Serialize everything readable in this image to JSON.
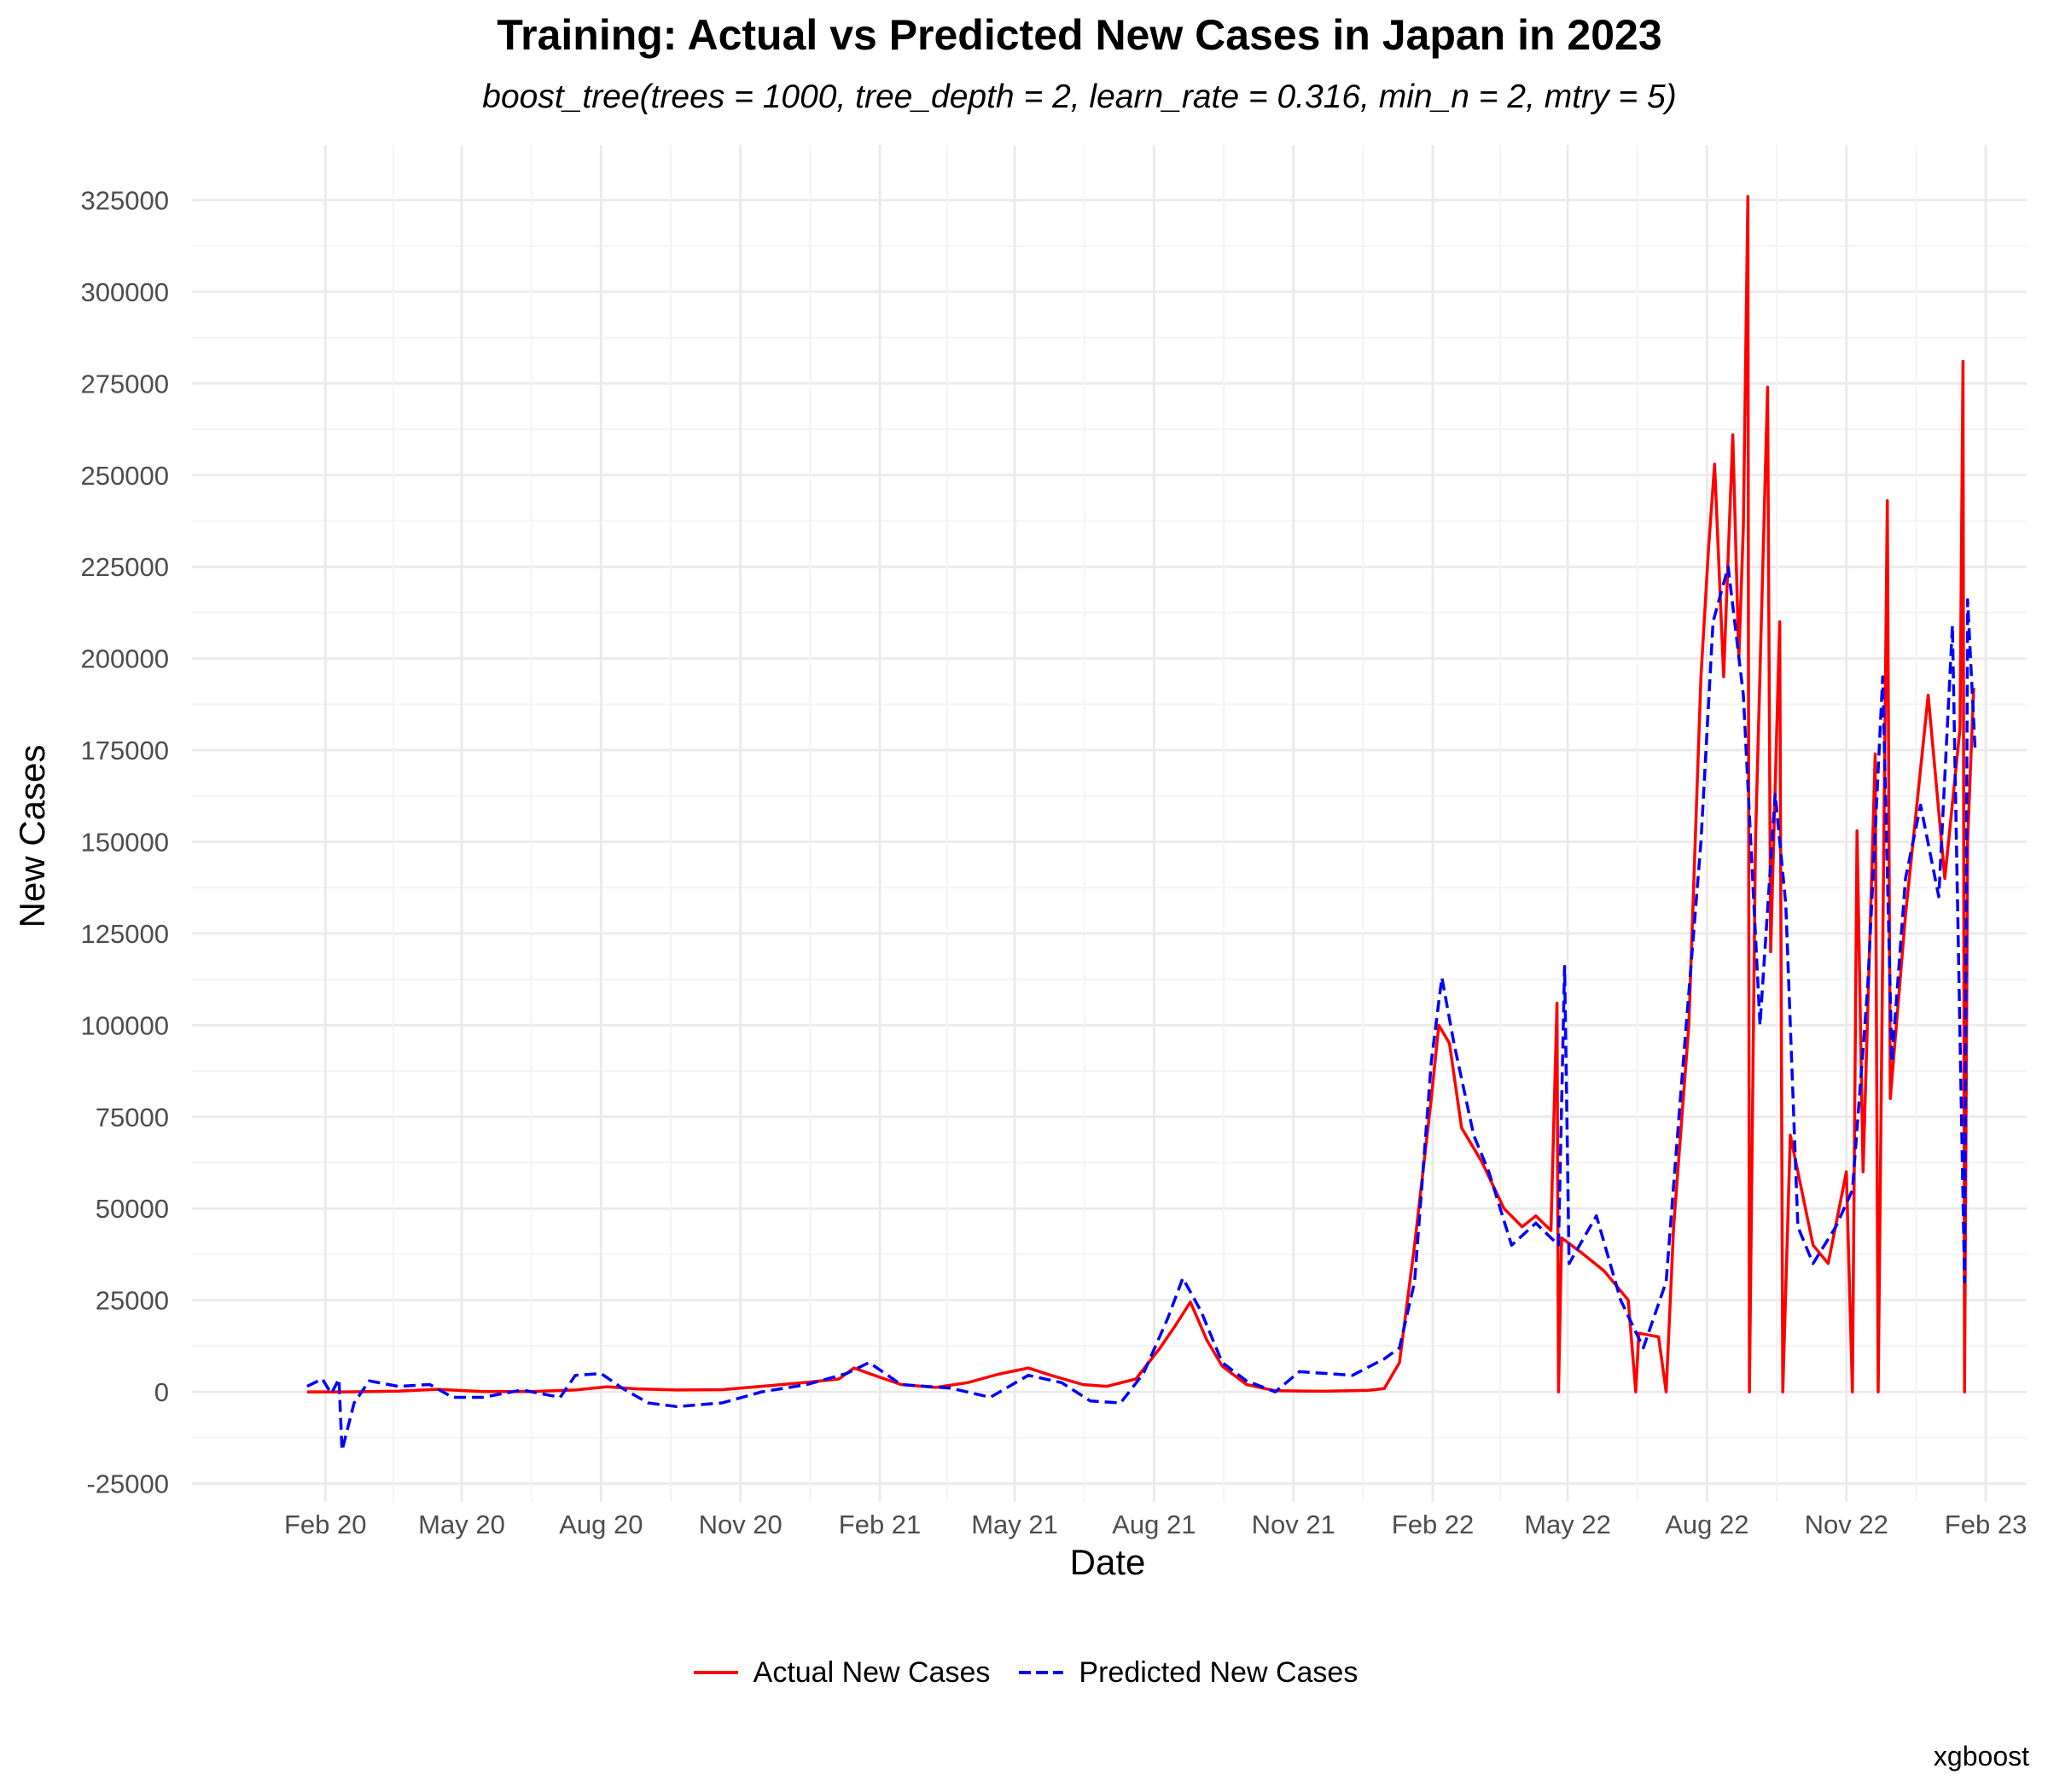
{
  "chart_data": {
    "type": "line",
    "title": "Training: Actual vs Predicted New Cases in Japan in 2023",
    "subtitle": "boost_tree(trees = 1000, tree_depth = 2, learn_rate = 0.316, min_n = 2, mtry = 5)",
    "xlabel": "Date",
    "ylabel": "New Cases",
    "caption": "xgboost",
    "ylim": [
      -30000,
      340000
    ],
    "y_ticks": [
      -25000,
      0,
      25000,
      50000,
      75000,
      100000,
      125000,
      150000,
      175000,
      200000,
      225000,
      250000,
      275000,
      300000,
      325000
    ],
    "x_range": [
      "2019-11-05",
      "2023-02-28"
    ],
    "x_ticks": [
      {
        "date": "2020-02-01",
        "label": "Feb 20"
      },
      {
        "date": "2020-05-01",
        "label": "May 20"
      },
      {
        "date": "2020-08-01",
        "label": "Aug 20"
      },
      {
        "date": "2020-11-01",
        "label": "Nov 20"
      },
      {
        "date": "2021-02-01",
        "label": "Feb 21"
      },
      {
        "date": "2021-05-01",
        "label": "May 21"
      },
      {
        "date": "2021-08-01",
        "label": "Aug 21"
      },
      {
        "date": "2021-11-01",
        "label": "Nov 21"
      },
      {
        "date": "2022-02-01",
        "label": "Feb 22"
      },
      {
        "date": "2022-05-01",
        "label": "May 22"
      },
      {
        "date": "2022-08-01",
        "label": "Aug 22"
      },
      {
        "date": "2022-11-01",
        "label": "Nov 22"
      },
      {
        "date": "2023-02-01",
        "label": "Feb 23"
      }
    ],
    "grid": true,
    "legend_position": "bottom",
    "series": [
      {
        "name": "Actual New Cases",
        "color": "#ff0000",
        "dash": "solid",
        "points": [
          [
            "2020-01-20",
            0
          ],
          [
            "2020-02-15",
            0
          ],
          [
            "2020-03-20",
            200
          ],
          [
            "2020-04-15",
            700
          ],
          [
            "2020-05-15",
            100
          ],
          [
            "2020-06-15",
            100
          ],
          [
            "2020-07-15",
            500
          ],
          [
            "2020-08-05",
            1400
          ],
          [
            "2020-08-25",
            800
          ],
          [
            "2020-09-20",
            500
          ],
          [
            "2020-10-20",
            600
          ],
          [
            "2020-11-15",
            1500
          ],
          [
            "2020-12-15",
            2600
          ],
          [
            "2021-01-05",
            3500
          ],
          [
            "2021-01-15",
            6500
          ],
          [
            "2021-01-25",
            5000
          ],
          [
            "2021-02-15",
            2000
          ],
          [
            "2021-03-10",
            1200
          ],
          [
            "2021-03-31",
            2500
          ],
          [
            "2021-04-20",
            4800
          ],
          [
            "2021-05-10",
            6500
          ],
          [
            "2021-05-25",
            4500
          ],
          [
            "2021-06-15",
            2000
          ],
          [
            "2021-07-01",
            1500
          ],
          [
            "2021-07-20",
            3500
          ],
          [
            "2021-08-05",
            12000
          ],
          [
            "2021-08-15",
            18000
          ],
          [
            "2021-08-25",
            24500
          ],
          [
            "2021-09-05",
            14000
          ],
          [
            "2021-09-15",
            7000
          ],
          [
            "2021-10-01",
            2000
          ],
          [
            "2021-10-20",
            300
          ],
          [
            "2021-11-20",
            150
          ],
          [
            "2021-12-20",
            400
          ],
          [
            "2021-12-31",
            900
          ],
          [
            "2022-01-10",
            8000
          ],
          [
            "2022-01-20",
            40000
          ],
          [
            "2022-01-31",
            80000
          ],
          [
            "2022-02-05",
            100000
          ],
          [
            "2022-02-12",
            95000
          ],
          [
            "2022-02-20",
            72000
          ],
          [
            "2022-03-05",
            63000
          ],
          [
            "2022-03-20",
            50000
          ],
          [
            "2022-04-01",
            45000
          ],
          [
            "2022-04-10",
            48000
          ],
          [
            "2022-04-20",
            44000
          ],
          [
            "2022-04-24",
            106000
          ],
          [
            "2022-04-25",
            0
          ],
          [
            "2022-04-27",
            42000
          ],
          [
            "2022-05-10",
            38000
          ],
          [
            "2022-05-25",
            33000
          ],
          [
            "2022-06-10",
            25000
          ],
          [
            "2022-06-15",
            0
          ],
          [
            "2022-06-17",
            16000
          ],
          [
            "2022-06-30",
            15000
          ],
          [
            "2022-07-05",
            0
          ],
          [
            "2022-07-10",
            45000
          ],
          [
            "2022-07-20",
            100000
          ],
          [
            "2022-07-28",
            195000
          ],
          [
            "2022-08-02",
            230000
          ],
          [
            "2022-08-06",
            253000
          ],
          [
            "2022-08-12",
            195000
          ],
          [
            "2022-08-18",
            261000
          ],
          [
            "2022-08-22",
            200000
          ],
          [
            "2022-08-25",
            236000
          ],
          [
            "2022-08-28",
            326000
          ],
          [
            "2022-08-29",
            0
          ],
          [
            "2022-09-02",
            150000
          ],
          [
            "2022-09-10",
            274000
          ],
          [
            "2022-09-12",
            120000
          ],
          [
            "2022-09-18",
            210000
          ],
          [
            "2022-09-20",
            0
          ],
          [
            "2022-09-25",
            70000
          ],
          [
            "2022-10-10",
            40000
          ],
          [
            "2022-10-20",
            35000
          ],
          [
            "2022-11-01",
            60000
          ],
          [
            "2022-11-05",
            0
          ],
          [
            "2022-11-08",
            153000
          ],
          [
            "2022-11-12",
            60000
          ],
          [
            "2022-11-20",
            174000
          ],
          [
            "2022-11-22",
            0
          ],
          [
            "2022-11-28",
            243000
          ],
          [
            "2022-11-30",
            80000
          ],
          [
            "2022-12-10",
            130000
          ],
          [
            "2022-12-25",
            190000
          ],
          [
            "2023-01-05",
            140000
          ],
          [
            "2023-01-15",
            181000
          ],
          [
            "2023-01-17",
            281000
          ],
          [
            "2023-01-18",
            0
          ],
          [
            "2023-01-20",
            150000
          ],
          [
            "2023-01-24",
            192000
          ]
        ]
      },
      {
        "name": "Predicted New Cases",
        "color": "#0000ff",
        "dash": "dashed",
        "points": [
          [
            "2020-01-20",
            1500
          ],
          [
            "2020-01-30",
            3500
          ],
          [
            "2020-02-05",
            -500
          ],
          [
            "2020-02-10",
            3500
          ],
          [
            "2020-02-12",
            -16000
          ],
          [
            "2020-02-20",
            -3000
          ],
          [
            "2020-03-01",
            3000
          ],
          [
            "2020-03-20",
            1500
          ],
          [
            "2020-04-10",
            2000
          ],
          [
            "2020-04-25",
            -1500
          ],
          [
            "2020-05-15",
            -1500
          ],
          [
            "2020-06-10",
            500
          ],
          [
            "2020-07-05",
            -1500
          ],
          [
            "2020-07-15",
            4500
          ],
          [
            "2020-08-01",
            5000
          ],
          [
            "2020-08-15",
            1000
          ],
          [
            "2020-09-01",
            -3000
          ],
          [
            "2020-09-20",
            -4000
          ],
          [
            "2020-10-20",
            -3000
          ],
          [
            "2020-11-15",
            0
          ],
          [
            "2020-12-15",
            2000
          ],
          [
            "2021-01-10",
            5000
          ],
          [
            "2021-01-25",
            8000
          ],
          [
            "2021-02-15",
            2000
          ],
          [
            "2021-03-20",
            1000
          ],
          [
            "2021-04-15",
            -1500
          ],
          [
            "2021-05-10",
            4500
          ],
          [
            "2021-06-01",
            2500
          ],
          [
            "2021-06-20",
            -2500
          ],
          [
            "2021-07-10",
            -3000
          ],
          [
            "2021-07-25",
            5000
          ],
          [
            "2021-08-10",
            20000
          ],
          [
            "2021-08-20",
            31000
          ],
          [
            "2021-09-01",
            22000
          ],
          [
            "2021-09-15",
            8000
          ],
          [
            "2021-10-01",
            3000
          ],
          [
            "2021-10-20",
            0
          ],
          [
            "2021-11-05",
            5500
          ],
          [
            "2021-12-10",
            4500
          ],
          [
            "2021-12-31",
            9000
          ],
          [
            "2022-01-10",
            12000
          ],
          [
            "2022-01-20",
            30000
          ],
          [
            "2022-01-31",
            90000
          ],
          [
            "2022-02-07",
            113000
          ],
          [
            "2022-02-15",
            95000
          ],
          [
            "2022-02-28",
            70000
          ],
          [
            "2022-03-10",
            60000
          ],
          [
            "2022-03-25",
            40000
          ],
          [
            "2022-04-10",
            46000
          ],
          [
            "2022-04-25",
            40000
          ],
          [
            "2022-04-29",
            116000
          ],
          [
            "2022-05-02",
            35000
          ],
          [
            "2022-05-20",
            48000
          ],
          [
            "2022-06-05",
            25000
          ],
          [
            "2022-06-20",
            12000
          ],
          [
            "2022-07-05",
            30000
          ],
          [
            "2022-07-15",
            83000
          ],
          [
            "2022-07-28",
            150000
          ],
          [
            "2022-08-05",
            210000
          ],
          [
            "2022-08-15",
            225000
          ],
          [
            "2022-08-25",
            190000
          ],
          [
            "2022-09-05",
            100000
          ],
          [
            "2022-09-15",
            163000
          ],
          [
            "2022-09-22",
            133000
          ],
          [
            "2022-09-30",
            45000
          ],
          [
            "2022-10-10",
            35000
          ],
          [
            "2022-10-25",
            45000
          ],
          [
            "2022-11-05",
            55000
          ],
          [
            "2022-11-15",
            110000
          ],
          [
            "2022-11-25",
            195000
          ],
          [
            "2022-12-01",
            90000
          ],
          [
            "2022-12-10",
            140000
          ],
          [
            "2022-12-20",
            160000
          ],
          [
            "2023-01-01",
            135000
          ],
          [
            "2023-01-10",
            209000
          ],
          [
            "2023-01-18",
            30000
          ],
          [
            "2023-01-20",
            216000
          ],
          [
            "2023-01-25",
            175000
          ]
        ]
      }
    ]
  }
}
